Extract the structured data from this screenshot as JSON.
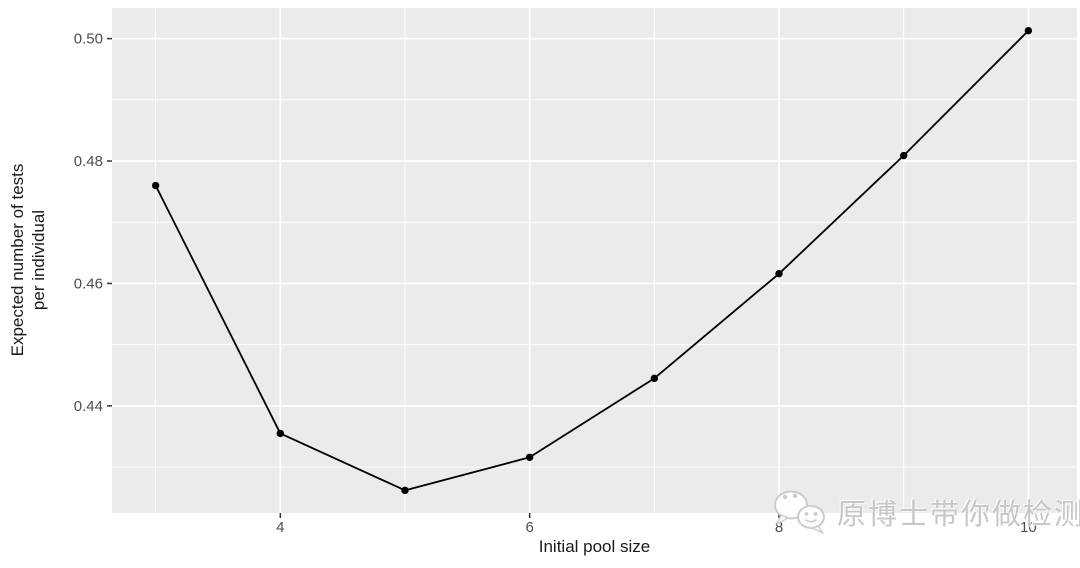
{
  "chart_data": {
    "type": "line",
    "title": "",
    "xlabel": "Initial pool size",
    "ylabel_line1": "Expected number of tests",
    "ylabel_line2": "per individual",
    "x": [
      3,
      4,
      5,
      6,
      7,
      8,
      9,
      10
    ],
    "y": [
      0.476,
      0.4355,
      0.4262,
      0.4316,
      0.4445,
      0.4616,
      0.4809,
      0.5013
    ],
    "xlim": [
      2.65,
      10.39
    ],
    "ylim": [
      0.4225,
      0.505
    ],
    "x_major_ticks": [
      4,
      6,
      8,
      10
    ],
    "x_tick_labels": [
      "4",
      "6",
      "8",
      "10"
    ],
    "x_minor_gridlines": [
      3,
      5,
      7,
      9
    ],
    "y_major_ticks": [
      0.44,
      0.46,
      0.48,
      0.5
    ],
    "y_tick_labels": [
      "0.44",
      "0.46",
      "0.48",
      "0.50"
    ],
    "y_minor_gridlines": [
      0.43,
      0.45,
      0.47,
      0.49
    ],
    "grid": true,
    "legend": "none",
    "colors": {
      "panel_bg": "#EBEBEB",
      "gridline": "#FFFFFF",
      "line": "#000000",
      "point": "#000000",
      "tick_label": "#4D4D4D",
      "axis_title": "#1A1A1A",
      "tick_mark": "#333333"
    }
  },
  "watermark": {
    "text": "原博士带你做检测",
    "icon": "wechat-chat-bubbles",
    "color": "#C7C7C7"
  }
}
